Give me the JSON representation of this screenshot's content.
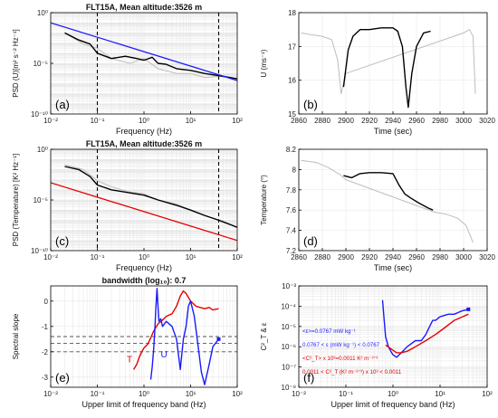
{
  "chart_data": [
    {
      "id": "a",
      "type": "line",
      "title": "FLT15A, Mean altitude:3526 m",
      "xlabel": "Frequency (Hz)",
      "ylabel": "PSD (U)[m² s⁻² Hz⁻¹]",
      "panel_label": "(a)",
      "xscale": "log",
      "yscale": "log",
      "xlim": [
        0.01,
        100
      ],
      "ylim": [
        1e-10,
        1
      ],
      "xticks": [
        "10⁻²",
        "10⁻¹",
        "10⁰",
        "10¹",
        "10²"
      ],
      "yticks": [
        "10⁻¹⁰",
        "10⁻⁵",
        "10⁰"
      ],
      "vlines": [
        0.1,
        40
      ],
      "series": [
        {
          "role": "segment spectra",
          "color": "#bdbdbd",
          "x": [
            0.02,
            0.05,
            0.1,
            0.2,
            0.5,
            1,
            2,
            5,
            10,
            20,
            50,
            100
          ],
          "y": [
            0.01,
            0.0008,
            0.0003,
            3e-05,
            1e-05,
            3e-05,
            3e-06,
            1e-06,
            1e-06,
            4e-07,
            6e-07,
            3e-07
          ]
        },
        {
          "role": "highlighted segment spectrum",
          "color": "#000000",
          "x": [
            0.02,
            0.04,
            0.07,
            0.1,
            0.2,
            0.4,
            0.7,
            1,
            1.5,
            2,
            3,
            5,
            10,
            20,
            40,
            70,
            100
          ],
          "y": [
            0.01,
            0.002,
            0.0008,
            0.0001,
            3e-05,
            5e-05,
            3e-05,
            2e-05,
            4e-05,
            1e-05,
            8e-06,
            3e-06,
            2e-06,
            1e-06,
            6e-07,
            4e-07,
            3e-07
          ]
        },
        {
          "role": "fit line",
          "color": "#1a1aff",
          "x": [
            0.01,
            100
          ],
          "y": [
            0.1,
            2e-07
          ]
        }
      ]
    },
    {
      "id": "b",
      "type": "line",
      "xlabel": "Time (sec)",
      "ylabel": "U (ms⁻¹)",
      "panel_label": "(b)",
      "xlim": [
        2860,
        3020
      ],
      "ylim": [
        15,
        18
      ],
      "xticks": [
        2860,
        2880,
        2900,
        2920,
        2940,
        2960,
        2980,
        3000,
        3020
      ],
      "yticks": [
        15,
        16,
        17,
        18
      ],
      "series": [
        {
          "role": "full record",
          "color": "#bdbdbd",
          "x": [
            2862,
            2870,
            2880,
            2888,
            2893,
            2896,
            2900,
            3000,
            3005,
            3008,
            3010
          ],
          "y": [
            17.4,
            17.35,
            17.3,
            17.2,
            16.6,
            15.6,
            16.2,
            17.4,
            17.5,
            17.3,
            15.6
          ]
        },
        {
          "role": "selected segment",
          "color": "#000000",
          "x": [
            2898,
            2902,
            2906,
            2912,
            2920,
            2930,
            2940,
            2944,
            2948,
            2951,
            2953,
            2956,
            2960,
            2966,
            2972
          ],
          "y": [
            15.8,
            16.9,
            17.3,
            17.5,
            17.5,
            17.55,
            17.55,
            17.45,
            17.0,
            15.8,
            15.2,
            16.2,
            17.0,
            17.4,
            17.45
          ]
        }
      ]
    },
    {
      "id": "c",
      "type": "line",
      "title": "FLT15A, Mean altitude:3526 m",
      "xlabel": "Frequency (Hz)",
      "ylabel": "PSD (Temperature) [K² Hz⁻¹]",
      "panel_label": "(c)",
      "xscale": "log",
      "yscale": "log",
      "xlim": [
        0.01,
        100
      ],
      "ylim": [
        1e-10,
        1
      ],
      "xticks": [
        "10⁻²",
        "10⁻¹",
        "10⁰",
        "10¹",
        "10²"
      ],
      "yticks": [
        "10⁻¹⁰",
        "10⁻⁵",
        "10⁰"
      ],
      "vlines": [
        0.1,
        40
      ],
      "series": [
        {
          "role": "segment spectra",
          "color": "#bdbdbd",
          "x": [
            0.02,
            0.05,
            0.1,
            0.2,
            0.5,
            1,
            2,
            5,
            10,
            20,
            50,
            100
          ],
          "y": [
            0.03,
            0.01,
            0.0008,
            0.0002,
            6e-05,
            4e-05,
            1e-05,
            4e-06,
            1e-06,
            3e-07,
            8e-08,
            2e-08
          ]
        },
        {
          "role": "highlighted segment spectrum",
          "color": "#000000",
          "x": [
            0.02,
            0.04,
            0.07,
            0.1,
            0.2,
            0.5,
            1,
            2,
            5,
            10,
            20,
            40,
            100
          ],
          "y": [
            0.02,
            0.01,
            0.002,
            0.0003,
            0.0001,
            5e-05,
            3e-05,
            1e-05,
            3e-06,
            1e-06,
            3e-07,
            1e-07,
            2e-08
          ]
        },
        {
          "role": "fit line",
          "color": "#e60000",
          "x": [
            0.01,
            100
          ],
          "y": [
            0.0005,
            1e-09
          ]
        }
      ]
    },
    {
      "id": "d",
      "type": "line",
      "xlabel": "Time (sec)",
      "ylabel": "Temperature (°)",
      "panel_label": "(d)",
      "xlim": [
        2860,
        3020
      ],
      "ylim": [
        7.2,
        8.2
      ],
      "xticks": [
        2860,
        2880,
        2900,
        2920,
        2940,
        2960,
        2980,
        3000,
        3020
      ],
      "yticks": [
        7.2,
        7.4,
        7.6,
        7.8,
        8,
        8.2
      ],
      "series": [
        {
          "role": "full record",
          "color": "#bdbdbd",
          "x": [
            2862,
            2875,
            2885,
            2895,
            2900,
            2975,
            2985,
            2995,
            3002,
            3008
          ],
          "y": [
            8.09,
            8.07,
            8.02,
            7.95,
            7.9,
            7.58,
            7.56,
            7.52,
            7.45,
            7.28
          ]
        },
        {
          "role": "selected segment",
          "color": "#000000",
          "x": [
            2898,
            2905,
            2912,
            2920,
            2930,
            2940,
            2945,
            2950,
            2955,
            2962,
            2970,
            2974
          ],
          "y": [
            7.94,
            7.92,
            7.96,
            7.97,
            7.97,
            7.96,
            7.85,
            7.76,
            7.72,
            7.67,
            7.62,
            7.6
          ]
        }
      ]
    },
    {
      "id": "e",
      "type": "line",
      "title": "bandwidth (log₁₀): 0.7",
      "xlabel": "Upper limit of frequency band (Hz)",
      "ylabel": "Spectral slope",
      "panel_label": "(e)",
      "xscale": "log",
      "xlim": [
        0.01,
        100
      ],
      "ylim": [
        -3.4,
        0.6
      ],
      "xticks": [
        "10⁻²",
        "10⁻¹",
        "10⁰",
        "10¹",
        "10²"
      ],
      "yticks": [
        -3,
        -2,
        -1,
        0
      ],
      "hlines": [
        -1.4,
        -1.67,
        -2.0
      ],
      "series": [
        {
          "name": "T",
          "color": "#e60000",
          "x": [
            0.6,
            0.7,
            0.8,
            0.9,
            1.0,
            1.2,
            1.4,
            1.6,
            2.0,
            2.5,
            3,
            4,
            5,
            6,
            7,
            8,
            10,
            13,
            16,
            20,
            25,
            30,
            40
          ],
          "y": [
            -2.7,
            -2.5,
            -2.2,
            -2.0,
            -1.85,
            -1.7,
            -1.45,
            -1.2,
            -0.9,
            -0.75,
            -0.6,
            -0.5,
            -0.2,
            0.2,
            0.4,
            0.3,
            0.0,
            -0.2,
            -0.25,
            -0.3,
            -0.25,
            -0.35,
            -0.3
          ]
        },
        {
          "name": "U",
          "color": "#1a1aff",
          "x": [
            1.4,
            1.5,
            1.6,
            1.7,
            1.8,
            1.9,
            2.0,
            2.1,
            2.3,
            2.5,
            3,
            4,
            5,
            6,
            7,
            8,
            9,
            10,
            12,
            15,
            17,
            20,
            25,
            30,
            40
          ],
          "y": [
            -3.1,
            -2.6,
            -2.0,
            -1.2,
            -0.3,
            0.5,
            -0.2,
            -0.8,
            -0.7,
            -1.0,
            -0.8,
            -1.0,
            -1.5,
            -2.7,
            -1.5,
            -1.0,
            -0.2,
            0.0,
            -0.6,
            -2.0,
            -2.8,
            -3.3,
            -2.5,
            -1.8,
            -1.5
          ]
        }
      ]
    },
    {
      "id": "f",
      "type": "line",
      "xlabel": "Upper limit of frequency band (Hz)",
      "ylabel": "C²_T & ε",
      "panel_label": "(f)",
      "xscale": "log",
      "yscale": "log",
      "xlim": [
        0.01,
        100
      ],
      "ylim": [
        1e-08,
        0.001
      ],
      "xticks": [
        "10⁻²",
        "10⁻¹",
        "10⁰",
        "10¹",
        "10²"
      ],
      "yticks": [
        "10⁻⁸",
        "10⁻⁷",
        "10⁻⁶",
        "10⁻⁵",
        "10⁻⁴",
        "10⁻³"
      ],
      "annotations": [
        "<ε>=0.0767 mW kg⁻¹",
        "0.0767 < ε (mW kg⁻¹) < 0.0767",
        "<C²_T> x 10³=0.0011 K² m⁻²ᐟ³",
        "0.0011 < C²_T (K² m⁻²ᐟ³) x 10³ < 0.0011"
      ],
      "series": [
        {
          "role": "ε",
          "color": "#1a1aff",
          "x": [
            0.6,
            0.65,
            0.7,
            0.8,
            0.9,
            1.0,
            1.2,
            1.5,
            2.0,
            3,
            4,
            5,
            6,
            7,
            8,
            10,
            15,
            20,
            25,
            30,
            40
          ],
          "y": [
            0.0002,
            2e-05,
            3e-06,
            1e-06,
            6e-07,
            4e-07,
            3e-07,
            5e-07,
            1e-06,
            2e-06,
            2e-06,
            4e-06,
            1e-05,
            2e-05,
            2e-05,
            3e-05,
            4e-05,
            4e-05,
            5e-05,
            6e-05,
            7e-05
          ]
        },
        {
          "role": "C²_T",
          "color": "#e60000",
          "x": [
            0.7,
            0.9,
            1.2,
            1.5,
            2.0,
            3,
            5,
            8,
            12,
            20,
            30,
            40
          ],
          "y": [
            1.2e-06,
            8e-07,
            5e-07,
            5e-07,
            6e-07,
            1e-06,
            2e-06,
            4e-06,
            8e-06,
            2e-05,
            3e-05,
            4e-05
          ]
        }
      ]
    }
  ]
}
